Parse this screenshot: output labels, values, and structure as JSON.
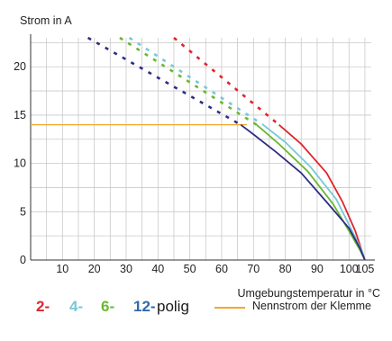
{
  "chart_data": {
    "type": "line",
    "ylabel": "Strom in A",
    "xlabel": "Umgebungstemperatur in °C",
    "xlim": [
      0,
      107
    ],
    "ylim": [
      0,
      23
    ],
    "x_ticks": [
      10,
      20,
      30,
      40,
      50,
      60,
      70,
      80,
      90,
      100,
      105
    ],
    "y_ticks": [
      0,
      5,
      10,
      15,
      20
    ],
    "grid": true,
    "series": [
      {
        "name": "2-",
        "color": "#e0252b",
        "dashed": [
          [
            45,
            23
          ],
          [
            78,
            14
          ]
        ],
        "solid": [
          [
            78,
            14
          ],
          [
            85,
            12
          ],
          [
            93,
            9
          ],
          [
            98,
            6
          ],
          [
            102,
            3
          ],
          [
            104,
            1
          ],
          [
            105,
            0
          ]
        ]
      },
      {
        "name": "4-",
        "color": "#79c8d8",
        "dashed": [
          [
            31,
            23
          ],
          [
            73,
            14
          ]
        ],
        "solid": [
          [
            73,
            14
          ],
          [
            80,
            12.2
          ],
          [
            88,
            9.6
          ],
          [
            96,
            6.3
          ],
          [
            101,
            3
          ],
          [
            104,
            1
          ],
          [
            105,
            0
          ]
        ]
      },
      {
        "name": "6-",
        "color": "#6ab82f",
        "dashed": [
          [
            28,
            23
          ],
          [
            71,
            14
          ]
        ],
        "solid": [
          [
            71,
            14
          ],
          [
            78,
            12
          ],
          [
            87,
            9.2
          ],
          [
            95,
            5.8
          ],
          [
            100,
            3
          ],
          [
            103.5,
            1
          ],
          [
            105,
            0
          ]
        ]
      },
      {
        "name": "12-",
        "color": "#2f2d84",
        "dashed": [
          [
            18,
            23
          ],
          [
            66,
            14
          ]
        ],
        "solid": [
          [
            66,
            14
          ],
          [
            70,
            13
          ],
          [
            77,
            11.2
          ],
          [
            85,
            9
          ],
          [
            93,
            6
          ],
          [
            100,
            3.3
          ],
          [
            103.5,
            1.2
          ],
          [
            105,
            0
          ]
        ]
      }
    ],
    "reference_line": {
      "name": "Nennstrom der Klemme",
      "y": 14,
      "x_end": 68,
      "color": "#f0a830"
    },
    "legend": {
      "placement": "bottom",
      "suffix": "polig"
    }
  }
}
